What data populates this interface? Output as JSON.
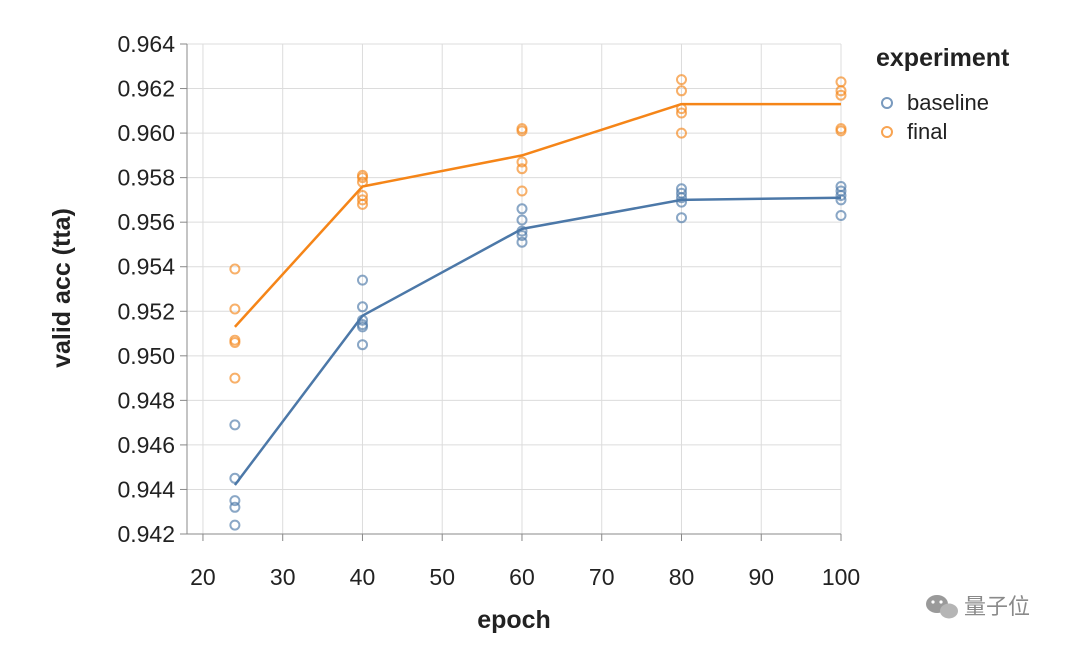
{
  "chart_data": {
    "type": "line",
    "xlabel": "epoch",
    "ylabel": "valid acc (tta)",
    "xlim": [
      18,
      100
    ],
    "ylim": [
      0.942,
      0.964
    ],
    "x_ticks": [
      "20",
      "30",
      "40",
      "50",
      "60",
      "70",
      "80",
      "90",
      "100"
    ],
    "y_ticks": [
      "0.942",
      "0.944",
      "0.946",
      "0.948",
      "0.950",
      "0.952",
      "0.954",
      "0.956",
      "0.958",
      "0.960",
      "0.962",
      "0.964"
    ],
    "grid": true,
    "legend": {
      "title": "experiment",
      "position": "right"
    },
    "series": [
      {
        "name": "baseline",
        "color": "#4c78a8",
        "line": {
          "x": [
            24,
            40,
            60,
            80,
            100
          ],
          "y": [
            0.9442,
            0.9518,
            0.9557,
            0.957,
            0.9571
          ]
        },
        "points": [
          [
            24,
            0.9424
          ],
          [
            24,
            0.9432
          ],
          [
            24,
            0.9435
          ],
          [
            24,
            0.9445
          ],
          [
            24,
            0.9469
          ],
          [
            40,
            0.9505
          ],
          [
            40,
            0.9513
          ],
          [
            40,
            0.9514
          ],
          [
            40,
            0.9516
          ],
          [
            40,
            0.9522
          ],
          [
            40,
            0.9534
          ],
          [
            60,
            0.9551
          ],
          [
            60,
            0.9554
          ],
          [
            60,
            0.9556
          ],
          [
            60,
            0.9561
          ],
          [
            60,
            0.9566
          ],
          [
            80,
            0.9562
          ],
          [
            80,
            0.9569
          ],
          [
            80,
            0.9571
          ],
          [
            80,
            0.9573
          ],
          [
            80,
            0.9575
          ],
          [
            100,
            0.9563
          ],
          [
            100,
            0.957
          ],
          [
            100,
            0.9572
          ],
          [
            100,
            0.9574
          ],
          [
            100,
            0.9576
          ]
        ]
      },
      {
        "name": "final",
        "color": "#f58518",
        "line": {
          "x": [
            24,
            40,
            60,
            80,
            100
          ],
          "y": [
            0.9513,
            0.9576,
            0.959,
            0.9613,
            0.9613
          ]
        },
        "points": [
          [
            24,
            0.949
          ],
          [
            24,
            0.9506
          ],
          [
            24,
            0.9507
          ],
          [
            24,
            0.9521
          ],
          [
            24,
            0.9539
          ],
          [
            40,
            0.9568
          ],
          [
            40,
            0.957
          ],
          [
            40,
            0.9572
          ],
          [
            40,
            0.9578
          ],
          [
            40,
            0.958
          ],
          [
            40,
            0.9581
          ],
          [
            60,
            0.9574
          ],
          [
            60,
            0.9584
          ],
          [
            60,
            0.9587
          ],
          [
            60,
            0.9601
          ],
          [
            60,
            0.9602
          ],
          [
            80,
            0.96
          ],
          [
            80,
            0.9609
          ],
          [
            80,
            0.9611
          ],
          [
            80,
            0.9619
          ],
          [
            80,
            0.9624
          ],
          [
            100,
            0.9601
          ],
          [
            100,
            0.9602
          ],
          [
            100,
            0.9617
          ],
          [
            100,
            0.9619
          ],
          [
            100,
            0.9623
          ]
        ]
      }
    ]
  },
  "watermark": {
    "text": "量子位",
    "icon": "wechat-icon"
  }
}
